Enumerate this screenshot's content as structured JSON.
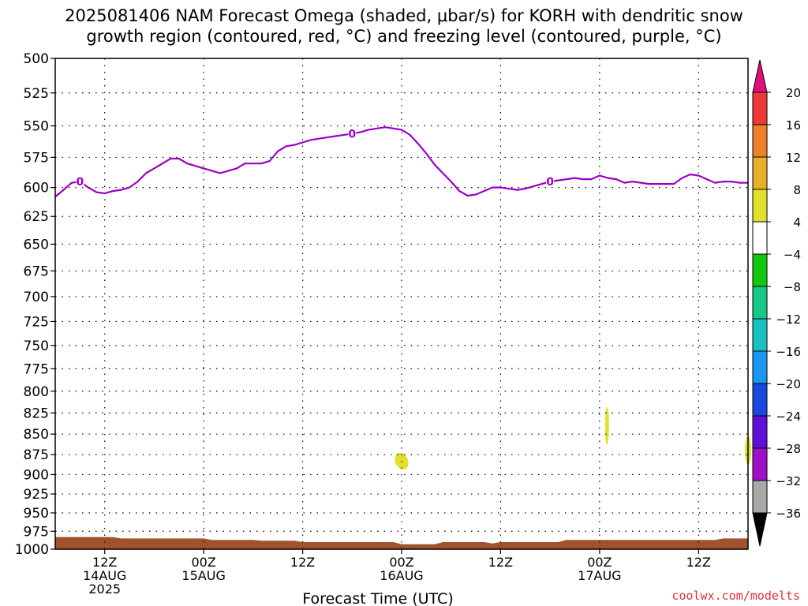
{
  "title": {
    "line1": "2025081406 NAM Forecast Omega (shaded, μbar/s) for KORH with dendritic snow",
    "line2": "growth region (contoured, red, °C) and freezing level (contoured, purple, °C)"
  },
  "credit": "coolwx.com/modelts",
  "chart_data": {
    "type": "heatmap",
    "title": "2025081406 NAM Forecast Omega (shaded, μbar/s) for KORH with dendritic snow growth region (contoured, red, °C) and freezing level (contoured, purple, °C)",
    "xlabel": "Forecast Time (UTC)",
    "ylabel": "",
    "xlim_hours": [
      6,
      90
    ],
    "ylim": [
      500,
      1000
    ],
    "y_scale": "log-pressure",
    "grid": true,
    "y_ticks": [
      500,
      525,
      550,
      575,
      600,
      625,
      650,
      675,
      700,
      725,
      750,
      775,
      800,
      825,
      850,
      875,
      900,
      925,
      950,
      975,
      1000
    ],
    "x_ticks": [
      {
        "hour": 12,
        "lines": [
          "12Z",
          "14AUG",
          "2025"
        ]
      },
      {
        "hour": 24,
        "lines": [
          "00Z",
          "15AUG"
        ]
      },
      {
        "hour": 36,
        "lines": [
          "12Z"
        ]
      },
      {
        "hour": 48,
        "lines": [
          "00Z",
          "16AUG"
        ]
      },
      {
        "hour": 60,
        "lines": [
          "12Z"
        ]
      },
      {
        "hour": 72,
        "lines": [
          "00Z",
          "17AUG"
        ]
      },
      {
        "hour": 84,
        "lines": [
          "12Z"
        ]
      }
    ],
    "freezing_level": {
      "name": "0",
      "color": "#9a00c8",
      "label_hours": [
        9,
        42,
        66
      ],
      "points": [
        [
          6,
          608
        ],
        [
          7,
          602
        ],
        [
          8,
          596
        ],
        [
          9,
          595
        ],
        [
          10,
          600
        ],
        [
          11,
          604
        ],
        [
          12,
          605
        ],
        [
          13,
          603
        ],
        [
          14,
          602
        ],
        [
          15,
          600
        ],
        [
          16,
          595
        ],
        [
          17,
          588
        ],
        [
          18,
          584
        ],
        [
          19,
          580
        ],
        [
          20,
          576
        ],
        [
          21,
          576
        ],
        [
          22,
          580
        ],
        [
          23,
          582
        ],
        [
          24,
          584
        ],
        [
          25,
          586
        ],
        [
          26,
          588
        ],
        [
          27,
          586
        ],
        [
          28,
          584
        ],
        [
          29,
          580
        ],
        [
          30,
          580
        ],
        [
          31,
          580
        ],
        [
          32,
          578
        ],
        [
          33,
          570
        ],
        [
          34,
          566
        ],
        [
          35,
          565
        ],
        [
          36,
          563
        ],
        [
          37,
          561
        ],
        [
          38,
          560
        ],
        [
          39,
          559
        ],
        [
          40,
          558
        ],
        [
          41,
          557
        ],
        [
          42,
          556
        ],
        [
          43,
          555
        ],
        [
          44,
          553
        ],
        [
          45,
          552
        ],
        [
          46,
          551
        ],
        [
          47,
          552
        ],
        [
          48,
          553
        ],
        [
          49,
          557
        ],
        [
          50,
          564
        ],
        [
          51,
          572
        ],
        [
          52,
          581
        ],
        [
          53,
          588
        ],
        [
          54,
          595
        ],
        [
          55,
          603
        ],
        [
          56,
          607
        ],
        [
          57,
          606
        ],
        [
          58,
          603
        ],
        [
          59,
          600
        ],
        [
          60,
          600
        ],
        [
          61,
          601
        ],
        [
          62,
          602
        ],
        [
          63,
          601
        ],
        [
          64,
          599
        ],
        [
          65,
          597
        ],
        [
          66,
          595
        ],
        [
          67,
          594
        ],
        [
          68,
          593
        ],
        [
          69,
          592
        ],
        [
          70,
          593
        ],
        [
          71,
          593
        ],
        [
          72,
          590
        ],
        [
          73,
          592
        ],
        [
          74,
          593
        ],
        [
          75,
          596
        ],
        [
          76,
          595
        ],
        [
          77,
          596
        ],
        [
          78,
          597
        ],
        [
          79,
          597
        ],
        [
          80,
          597
        ],
        [
          81,
          597
        ],
        [
          82,
          592
        ],
        [
          83,
          589
        ],
        [
          84,
          590
        ],
        [
          85,
          593
        ],
        [
          86,
          596
        ],
        [
          87,
          595
        ],
        [
          88,
          595
        ],
        [
          89,
          596
        ],
        [
          90,
          596
        ]
      ]
    },
    "omega_areas": [
      {
        "name": "omega-area-16aug",
        "value_range": [
          4,
          8
        ],
        "color": "#e2e02a",
        "center_hour": 48,
        "center_pressure": 883
      },
      {
        "name": "omega-area-17aug",
        "value_range": [
          4,
          8
        ],
        "color": "#e2e02a",
        "center_hour": 72.9,
        "center_pressure": 840
      },
      {
        "name": "omega-area-edge",
        "value_range": [
          4,
          8
        ],
        "color": "#e2e02a",
        "center_hour": 90,
        "center_pressure": 870
      }
    ],
    "terrain": {
      "name": "surface",
      "color": "#a0522d",
      "surface_points": [
        [
          6,
          983
        ],
        [
          13,
          983
        ],
        [
          14,
          985
        ],
        [
          24,
          985
        ],
        [
          25,
          987
        ],
        [
          30,
          987
        ],
        [
          31,
          988
        ],
        [
          35,
          988
        ],
        [
          36,
          990
        ],
        [
          47,
          990
        ],
        [
          48,
          993
        ],
        [
          52,
          993
        ],
        [
          53,
          990
        ],
        [
          58,
          990
        ],
        [
          59,
          992
        ],
        [
          60,
          990
        ],
        [
          67,
          990
        ],
        [
          68,
          987
        ],
        [
          86,
          987
        ],
        [
          87,
          985
        ],
        [
          90,
          985
        ]
      ]
    },
    "colorbar": {
      "labels": [
        "20",
        "16",
        "12",
        "8",
        "4",
        "−4",
        "−8",
        "−12",
        "−16",
        "−20",
        "−24",
        "−28",
        "−32",
        "−36"
      ],
      "top_triangle_color": "#e0107a",
      "bottom_triangle_color": "#000000",
      "bands": [
        "#f03838",
        "#f0802a",
        "#e8b028",
        "#e2e02a",
        "#ffffff",
        "#10c810",
        "#18c888",
        "#18c0c0",
        "#1898f0",
        "#1848e0",
        "#6010d8",
        "#a010c8",
        "#a8a8a8"
      ]
    }
  }
}
